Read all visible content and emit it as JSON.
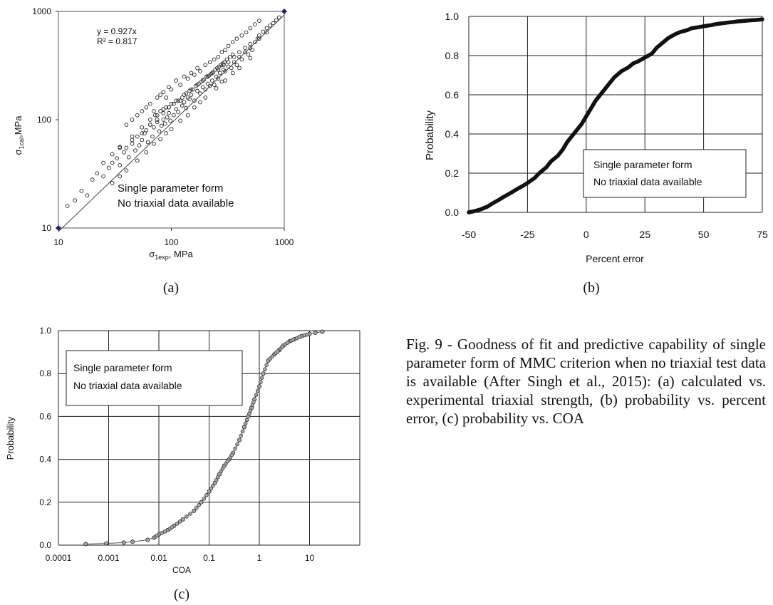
{
  "figure": {
    "caption": "Fig. 9 - Goodness of fit and predictive capability of single parameter form of MMC criterion when no triaxial test data is available (After Singh et al., 2015): (a) calculated vs. experimental triaxial strength, (b) probability vs. percent error, (c) probability vs. COA"
  },
  "chart_data": [
    {
      "type": "scatter",
      "panel_label": "(a)",
      "ylabel_sym": "σ",
      "ylabel_sub": "1cal",
      "ylabel_rest": ",MPa",
      "xlabel_sym": "σ",
      "xlabel_sub": "1exp",
      "xlabel_rest": ", MPa",
      "x_scale": "log",
      "y_scale": "log",
      "xlim": [
        10,
        1000
      ],
      "ylim": [
        10,
        1000
      ],
      "x_ticks": [
        "10",
        "100",
        "1000"
      ],
      "y_ticks": [
        "10",
        "100",
        "1000"
      ],
      "grid": false,
      "equation": "y = 0.927x",
      "r_squared": "R² = 0.817",
      "annotation": [
        "Single parameter form",
        "No triaxial data available"
      ],
      "trendline_slope": 0.927,
      "endpoint_markers": [
        [
          10,
          10
        ],
        [
          1000,
          1000
        ]
      ],
      "x": [
        12,
        14,
        16,
        18,
        20,
        22,
        25,
        28,
        30,
        33,
        35,
        38,
        40,
        42,
        45,
        48,
        50,
        52,
        55,
        58,
        60,
        62,
        65,
        68,
        70,
        72,
        75,
        78,
        80,
        82,
        85,
        88,
        90,
        92,
        95,
        98,
        100,
        105,
        110,
        115,
        120,
        125,
        130,
        135,
        140,
        145,
        150,
        160,
        170,
        180,
        190,
        200,
        210,
        220,
        230,
        240,
        250,
        260,
        270,
        280,
        290,
        300,
        320,
        340,
        360,
        380,
        400,
        420,
        450,
        480,
        500,
        520,
        550,
        580,
        600,
        650,
        700,
        750,
        800,
        850,
        900,
        40,
        45,
        50,
        55,
        60,
        65,
        70,
        75,
        80,
        85,
        90,
        95,
        100,
        110,
        120,
        130,
        140,
        150,
        160,
        170,
        180,
        200,
        220,
        240,
        260,
        280,
        300,
        320,
        350,
        380,
        420,
        460,
        500,
        550,
        600,
        30,
        35,
        40,
        50,
        60,
        70,
        80,
        90,
        100,
        120,
        140,
        160,
        180,
        200,
        250,
        300,
        350,
        400,
        500,
        25,
        30,
        35,
        45,
        55,
        65,
        75,
        85,
        95,
        110,
        130,
        150,
        170,
        190,
        210,
        230,
        260,
        290,
        320,
        360,
        400,
        450,
        500,
        600,
        700,
        35,
        45,
        55,
        65,
        75,
        85,
        95,
        105,
        115,
        125,
        135,
        145,
        155,
        165,
        175,
        185,
        195,
        205,
        215,
        225,
        235,
        245,
        255,
        265,
        275,
        285,
        295,
        310,
        330,
        350
      ],
      "y": [
        16,
        18,
        22,
        20,
        28,
        32,
        30,
        36,
        40,
        44,
        38,
        50,
        55,
        45,
        60,
        52,
        70,
        58,
        65,
        75,
        80,
        62,
        90,
        70,
        85,
        110,
        95,
        78,
        120,
        88,
        100,
        92,
        130,
        105,
        115,
        98,
        140,
        110,
        125,
        118,
        150,
        135,
        145,
        128,
        160,
        155,
        170,
        150,
        185,
        175,
        200,
        190,
        215,
        205,
        230,
        210,
        250,
        240,
        270,
        225,
        290,
        280,
        310,
        300,
        340,
        320,
        380,
        360,
        420,
        400,
        460,
        440,
        520,
        560,
        600,
        650,
        700,
        740,
        780,
        830,
        880,
        90,
        100,
        110,
        120,
        130,
        140,
        120,
        160,
        170,
        180,
        160,
        200,
        190,
        230,
        210,
        250,
        240,
        270,
        260,
        300,
        280,
        320,
        340,
        360,
        380,
        420,
        440,
        480,
        520,
        560,
        600,
        640,
        700,
        760,
        820,
        26,
        30,
        34,
        42,
        50,
        60,
        66,
        75,
        82,
        98,
        110,
        130,
        145,
        160,
        195,
        230,
        270,
        300,
        370,
        40,
        48,
        56,
        70,
        85,
        100,
        110,
        125,
        130,
        150,
        170,
        190,
        210,
        230,
        250,
        270,
        290,
        320,
        340,
        380,
        420,
        460,
        500,
        560,
        640,
        55,
        65,
        75,
        90,
        100,
        115,
        130,
        140,
        150,
        160,
        175,
        185,
        190,
        205,
        215,
        225,
        235,
        250,
        255,
        265,
        275,
        290,
        300,
        310,
        320,
        330,
        340,
        360,
        380,
        400
      ]
    },
    {
      "type": "line",
      "panel_label": "(b)",
      "xlabel": "Percent error",
      "ylabel": "Probability",
      "xlim": [
        -50,
        75
      ],
      "ylim": [
        0,
        1.0
      ],
      "x_ticks": [
        "-50",
        "-25",
        "0",
        "25",
        "50",
        "75"
      ],
      "y_ticks": [
        "0.0",
        "0.2",
        "0.4",
        "0.6",
        "0.8",
        "1.0"
      ],
      "grid": true,
      "annotation": [
        "Single parameter form",
        "No triaxial data available"
      ],
      "series": [
        {
          "x": [
            -50,
            -48,
            -45,
            -42,
            -40,
            -37,
            -35,
            -32,
            -30,
            -27,
            -25,
            -22,
            -20,
            -17,
            -15,
            -12,
            -10,
            -8,
            -6,
            -4,
            -2,
            0,
            2,
            4,
            6,
            8,
            10,
            12,
            15,
            18,
            20,
            22,
            25,
            28,
            30,
            33,
            35,
            38,
            40,
            43,
            45,
            48,
            50,
            53,
            55,
            58,
            60,
            63,
            65,
            68,
            70,
            73,
            75
          ],
          "y": [
            0.0,
            0.005,
            0.015,
            0.03,
            0.045,
            0.065,
            0.08,
            0.1,
            0.115,
            0.135,
            0.15,
            0.175,
            0.2,
            0.23,
            0.26,
            0.29,
            0.32,
            0.36,
            0.39,
            0.42,
            0.45,
            0.49,
            0.53,
            0.57,
            0.6,
            0.63,
            0.66,
            0.69,
            0.72,
            0.74,
            0.76,
            0.77,
            0.79,
            0.81,
            0.84,
            0.87,
            0.89,
            0.91,
            0.92,
            0.93,
            0.94,
            0.945,
            0.95,
            0.955,
            0.96,
            0.965,
            0.968,
            0.972,
            0.975,
            0.978,
            0.98,
            0.982,
            0.985
          ]
        }
      ]
    },
    {
      "type": "line",
      "panel_label": "(c)",
      "xlabel": "COA",
      "ylabel": "Probability",
      "x_scale": "log",
      "xlim": [
        0.0001,
        100
      ],
      "ylim": [
        0,
        1.0
      ],
      "x_ticks": [
        "0.0001",
        "0.001",
        "0.01",
        "0.1",
        "1",
        "10"
      ],
      "y_ticks": [
        "0.0",
        "0.2",
        "0.4",
        "0.6",
        "0.8",
        "1.0"
      ],
      "grid": true,
      "annotation": [
        "Single parameter form",
        "No triaxial data available"
      ],
      "series": [
        {
          "x": [
            0.00035,
            0.0009,
            0.002,
            0.003,
            0.006,
            0.008,
            0.01,
            0.015,
            0.02,
            0.03,
            0.05,
            0.07,
            0.1,
            0.13,
            0.16,
            0.2,
            0.25,
            0.3,
            0.4,
            0.5,
            0.6,
            0.7,
            0.8,
            1.0,
            1.2,
            1.5,
            2.0,
            2.5,
            3.0,
            4.0,
            5.0,
            7.0,
            10.0,
            13.0,
            18.0
          ],
          "y": [
            0.005,
            0.008,
            0.012,
            0.016,
            0.025,
            0.035,
            0.05,
            0.07,
            0.09,
            0.12,
            0.16,
            0.2,
            0.25,
            0.29,
            0.33,
            0.37,
            0.4,
            0.43,
            0.49,
            0.55,
            0.6,
            0.64,
            0.68,
            0.74,
            0.8,
            0.86,
            0.89,
            0.91,
            0.93,
            0.95,
            0.96,
            0.975,
            0.985,
            0.99,
            0.995
          ]
        }
      ]
    }
  ]
}
